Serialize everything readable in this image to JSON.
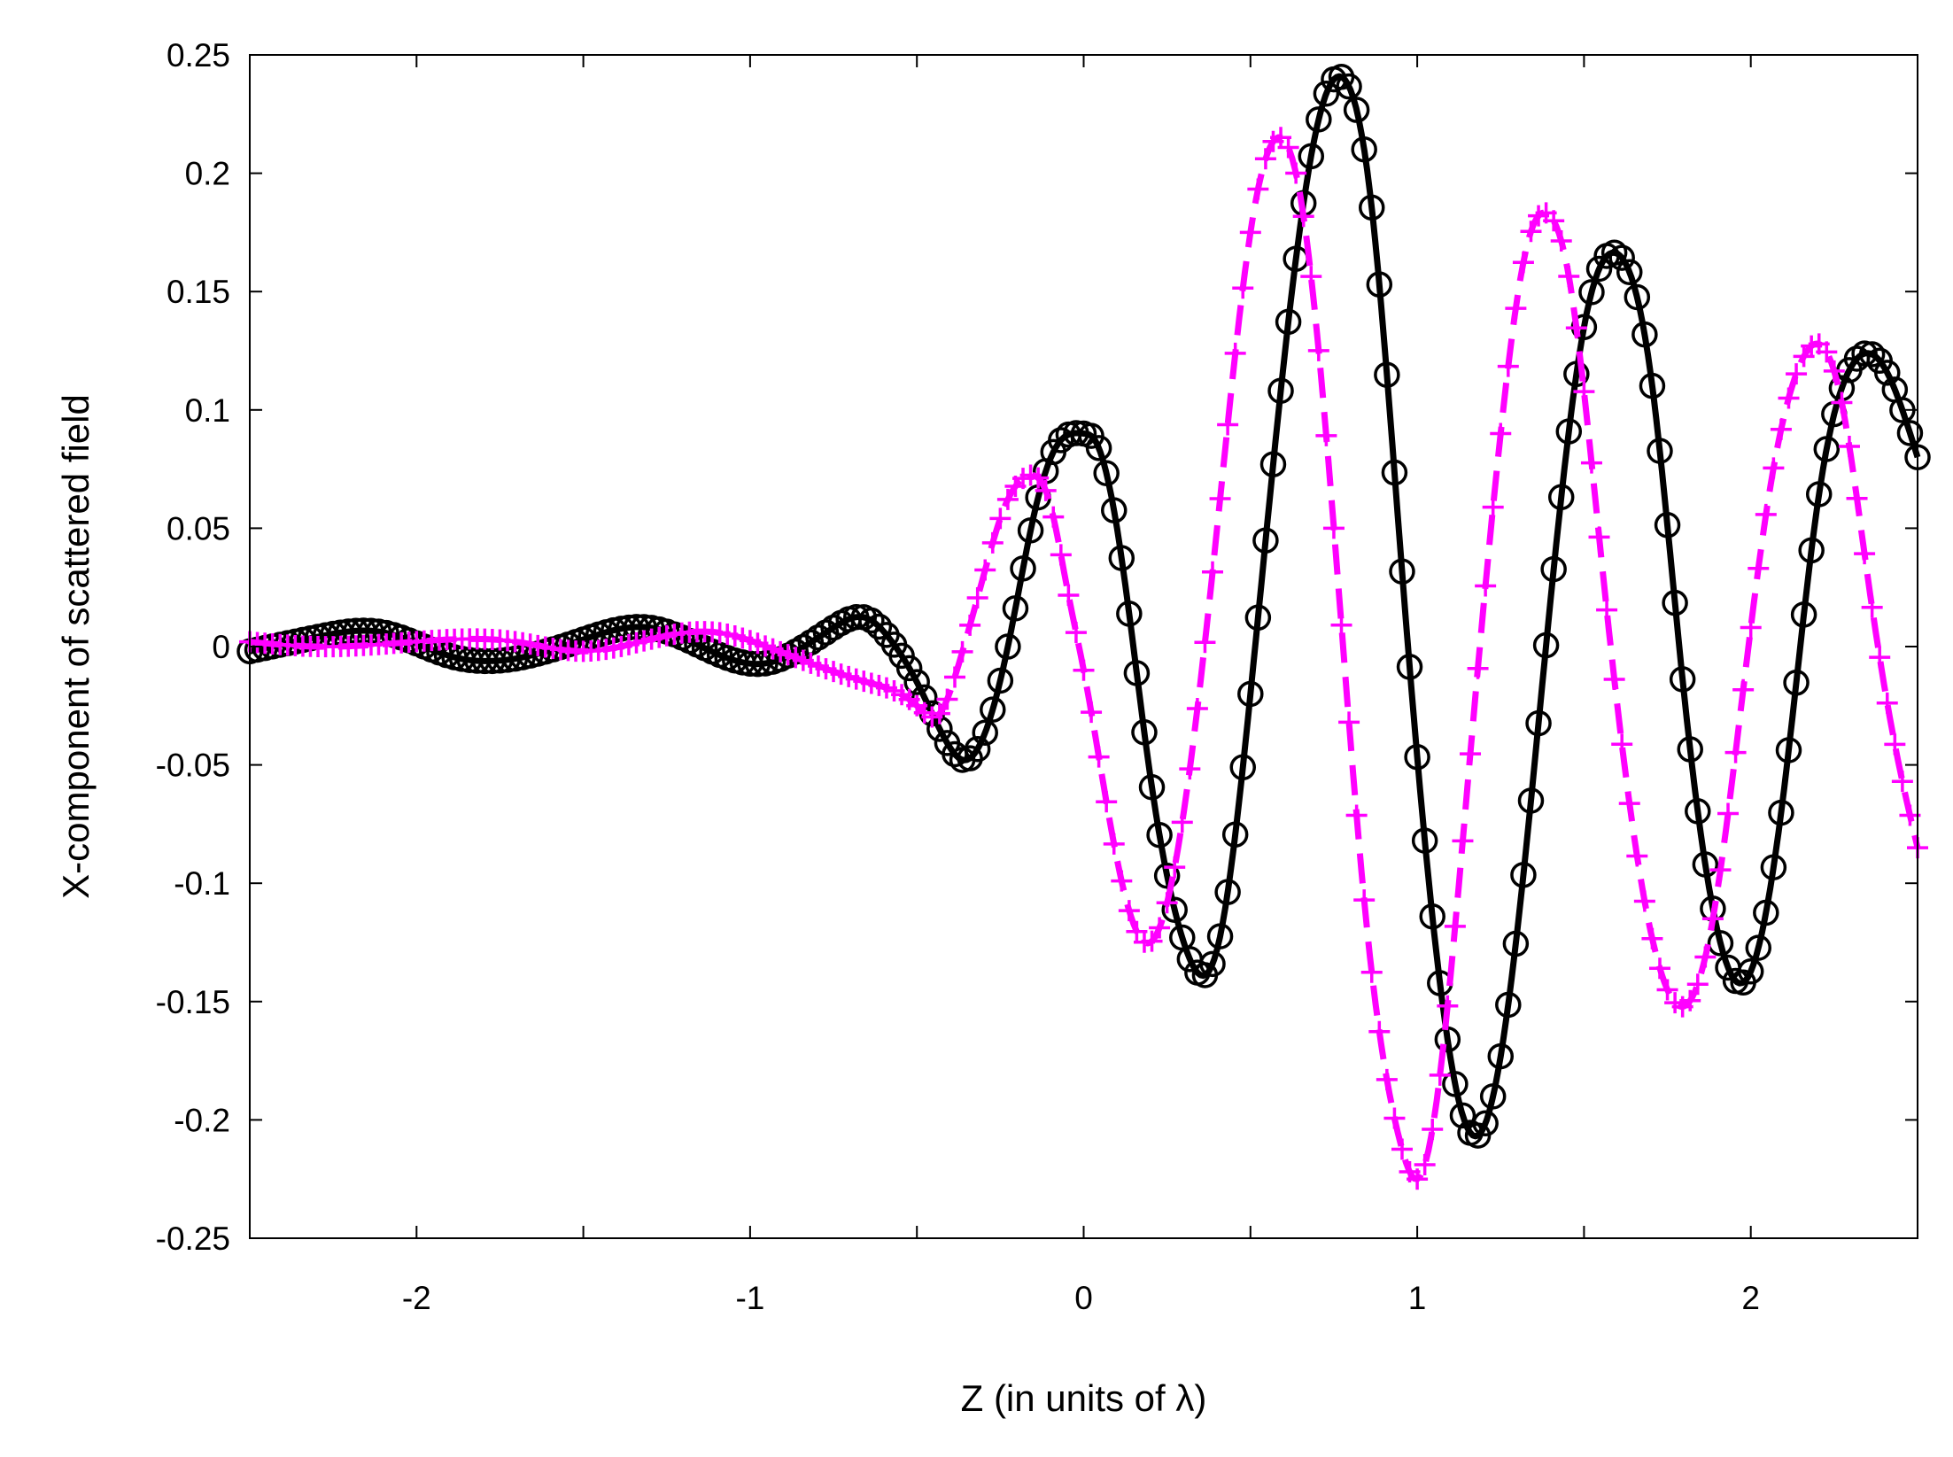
{
  "chart_data": {
    "type": "line",
    "title": "",
    "xlabel": "Z (in units of λ)",
    "ylabel": "X-component of scattered field",
    "xlim": [
      -2.5,
      2.5
    ],
    "ylim": [
      -0.25,
      0.25
    ],
    "xticks": [
      "-2",
      "-1",
      "0",
      "1",
      "2"
    ],
    "xtick_values": [
      -2,
      -1,
      0,
      1,
      2
    ],
    "xminor_values": [
      -2.5,
      -1.5,
      -0.5,
      0.5,
      1.5,
      2.5
    ],
    "yticks": [
      "0.25",
      "0.2",
      "0.15",
      "0.1",
      "0.05",
      "0",
      "-0.05",
      "-0.1",
      "-0.15",
      "-0.2",
      "-0.25"
    ],
    "ytick_values": [
      0.25,
      0.2,
      0.15,
      0.1,
      0.05,
      0,
      -0.05,
      -0.1,
      -0.15,
      -0.2,
      -0.25
    ],
    "grid": false,
    "legend": "none",
    "series": [
      {
        "line_style": "solid",
        "marker": "circle",
        "color": "#000000",
        "x": [
          -2.5,
          -2.3,
          -2.1,
          -1.9,
          -1.7,
          -1.5,
          -1.3,
          -1.1,
          -0.95,
          -0.85,
          -0.75,
          -0.65,
          -0.58,
          -0.5,
          -0.42,
          -0.36,
          -0.3,
          -0.22,
          -0.15,
          -0.08,
          0.0,
          0.03,
          0.1,
          0.2,
          0.3,
          0.4,
          0.5,
          0.6,
          0.7,
          0.78,
          0.86,
          0.95,
          1.05,
          1.13,
          1.2,
          1.3,
          1.4,
          1.5,
          1.6,
          1.7,
          1.8,
          1.9,
          1.99,
          2.1,
          2.2,
          2.3,
          2.4,
          2.5
        ],
        "y": [
          -0.002,
          0.004,
          0.006,
          -0.004,
          -0.005,
          0.003,
          0.008,
          -0.003,
          -0.007,
          -0.001,
          0.008,
          0.012,
          0.003,
          -0.015,
          -0.038,
          -0.048,
          -0.038,
          0.005,
          0.055,
          0.085,
          0.09,
          0.088,
          0.05,
          -0.055,
          -0.125,
          -0.128,
          -0.02,
          0.12,
          0.22,
          0.24,
          0.19,
          0.04,
          -0.12,
          -0.195,
          -0.203,
          -0.12,
          0.02,
          0.135,
          0.166,
          0.115,
          -0.02,
          -0.12,
          -0.14,
          -0.06,
          0.06,
          0.118,
          0.118,
          0.08
        ]
      },
      {
        "line_style": "dashed",
        "marker": "plus",
        "color": "#ff00ff",
        "x": [
          -2.5,
          -2.3,
          -2.1,
          -1.9,
          -1.7,
          -1.5,
          -1.3,
          -1.1,
          -0.95,
          -0.8,
          -0.65,
          -0.5,
          -0.43,
          -0.38,
          -0.3,
          -0.24,
          -0.17,
          -0.1,
          -0.05,
          0.0,
          0.1,
          0.2,
          0.3,
          0.4,
          0.5,
          0.58,
          0.65,
          0.75,
          0.85,
          0.95,
          1.0,
          1.05,
          1.15,
          1.25,
          1.33,
          1.39,
          1.45,
          1.55,
          1.65,
          1.75,
          1.8,
          1.88,
          1.95,
          2.05,
          2.15,
          2.2,
          2.27,
          2.35,
          2.43,
          2.5
        ],
        "y": [
          0.002,
          0.0,
          0.001,
          0.003,
          0.002,
          -0.002,
          0.003,
          0.006,
          0.0,
          -0.008,
          -0.015,
          -0.025,
          -0.028,
          -0.01,
          0.03,
          0.058,
          0.072,
          0.06,
          0.025,
          -0.01,
          -0.09,
          -0.125,
          -0.07,
          0.05,
          0.175,
          0.215,
          0.19,
          0.05,
          -0.12,
          -0.21,
          -0.225,
          -0.2,
          -0.06,
          0.09,
          0.17,
          0.183,
          0.16,
          0.04,
          -0.08,
          -0.145,
          -0.152,
          -0.12,
          -0.05,
          0.06,
          0.12,
          0.128,
          0.105,
          0.03,
          -0.04,
          -0.085
        ]
      }
    ]
  }
}
